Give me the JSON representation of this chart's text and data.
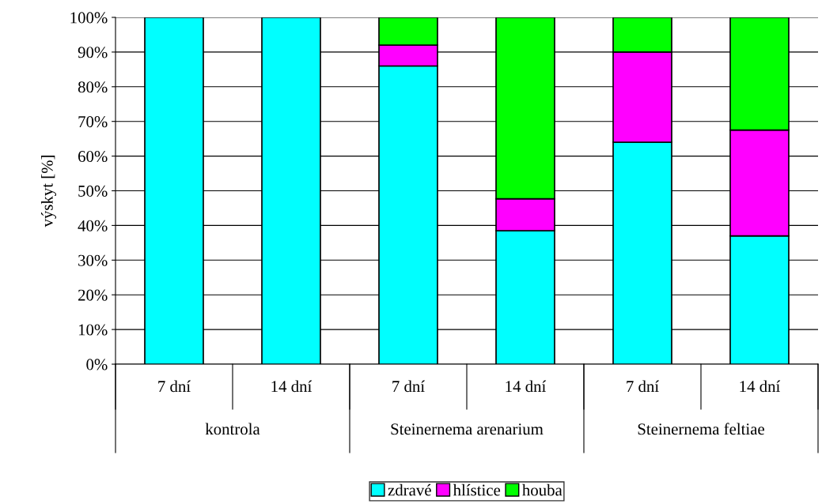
{
  "chart_data": {
    "type": "bar",
    "stacked": true,
    "ylabel": "výskyt [%]",
    "categories": [
      "7 dní",
      "14 dní",
      "7 dní",
      "14 dní",
      "7 dní",
      "14 dní"
    ],
    "annotations": [
      "kontrola",
      "Steinernema arenarium",
      "Steinernema feltiae"
    ],
    "series": [
      {
        "name": "zdravé",
        "color": "#00ffff",
        "values": [
          100,
          100,
          86,
          38.5,
          64,
          37
        ]
      },
      {
        "name": "hlístice",
        "color": "#ff00ff",
        "values": [
          null,
          null,
          6,
          9.2,
          26,
          30.5
        ]
      },
      {
        "name": "houba",
        "color": "#00ff00",
        "values": [
          null,
          null,
          8,
          52.3,
          10,
          32.5
        ]
      }
    ],
    "ylim": [
      0,
      100
    ],
    "yticks": [
      {
        "value": 0,
        "label": "0%"
      },
      {
        "value": 10,
        "label": "10%"
      },
      {
        "value": 20,
        "label": "20%"
      },
      {
        "value": 30,
        "label": "30%"
      },
      {
        "value": 40,
        "label": "40%"
      },
      {
        "value": 50,
        "label": "50%"
      },
      {
        "value": 60,
        "label": "60%"
      },
      {
        "value": 70,
        "label": "70%"
      },
      {
        "value": 80,
        "label": "80%"
      },
      {
        "value": 90,
        "label": "90%"
      },
      {
        "value": 100,
        "label": "100%"
      }
    ],
    "grid": "y",
    "legend": "bottom"
  }
}
